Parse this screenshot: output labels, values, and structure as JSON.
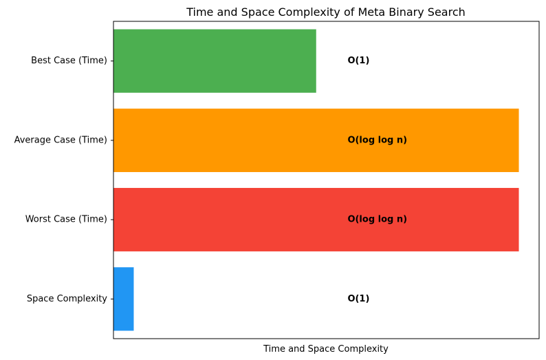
{
  "chart_data": {
    "type": "bar",
    "orientation": "horizontal",
    "title": "Time and Space Complexity of Meta Binary Search",
    "xlabel": "Time and Space Complexity",
    "ylabel": "",
    "xticks_visible": false,
    "grid": false,
    "xlim": [
      0,
      1.05
    ],
    "categories": [
      "Best Case (Time)",
      "Average Case (Time)",
      "Worst Case (Time)",
      "Space Complexity"
    ],
    "values": [
      0.5,
      1.0,
      1.0,
      0.05
    ],
    "bar_labels": [
      "O(1)",
      "O(log log n)",
      "O(log log n)",
      "O(1)"
    ],
    "colors": [
      "#4caf50",
      "#ff9800",
      "#f44336",
      "#2196f3"
    ]
  }
}
